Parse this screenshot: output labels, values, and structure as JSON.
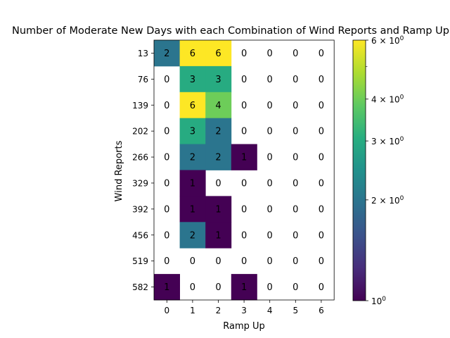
{
  "chart_data": {
    "type": "heatmap",
    "title": "Number of Moderate New Days with each Combination of Wind Reports and Ramp Up",
    "xlabel": "Ramp Up",
    "ylabel": "Wind Reports",
    "x_categories": [
      "0",
      "1",
      "2",
      "3",
      "4",
      "5",
      "6"
    ],
    "y_categories": [
      "13",
      "76",
      "139",
      "202",
      "266",
      "329",
      "392",
      "456",
      "519",
      "582"
    ],
    "values": [
      [
        2,
        6,
        6,
        0,
        0,
        0,
        0
      ],
      [
        0,
        3,
        3,
        0,
        0,
        0,
        0
      ],
      [
        0,
        6,
        4,
        0,
        0,
        0,
        0
      ],
      [
        0,
        3,
        2,
        0,
        0,
        0,
        0
      ],
      [
        0,
        2,
        2,
        1,
        0,
        0,
        0
      ],
      [
        0,
        1,
        0,
        0,
        0,
        0,
        0
      ],
      [
        0,
        1,
        1,
        0,
        0,
        0,
        0
      ],
      [
        0,
        2,
        1,
        0,
        0,
        0,
        0
      ],
      [
        0,
        0,
        0,
        0,
        0,
        0,
        0
      ],
      [
        1,
        0,
        0,
        1,
        0,
        0,
        0
      ]
    ],
    "color_scale": "log",
    "colormap": "viridis",
    "zero_cells": "blank",
    "colorbar": {
      "range": [
        1,
        6
      ],
      "major_tick_labels": [
        {
          "value": 1,
          "base": "10",
          "exp": "0",
          "mult": ""
        },
        {
          "value": 2,
          "base": "10",
          "exp": "0",
          "mult": "2 × "
        },
        {
          "value": 3,
          "base": "10",
          "exp": "0",
          "mult": "3 × "
        },
        {
          "value": 4,
          "base": "10",
          "exp": "0",
          "mult": "4 × "
        },
        {
          "value": 6,
          "base": "10",
          "exp": "0",
          "mult": "6 × "
        }
      ],
      "minor_ticks": [
        5
      ]
    }
  }
}
